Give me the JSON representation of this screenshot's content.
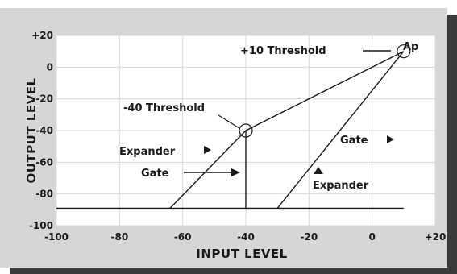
{
  "chart_data": {
    "type": "line",
    "title": "",
    "xlabel": "INPUT LEVEL",
    "ylabel": "OUTPUT LEVEL",
    "xlim": [
      -100,
      20
    ],
    "ylim": [
      -100,
      20
    ],
    "x_ticks": [
      -100,
      -80,
      -60,
      -40,
      -20,
      0,
      20
    ],
    "x_tick_labels": [
      "-100",
      "-80",
      "-60",
      "-40",
      "-20",
      "0",
      "+20"
    ],
    "y_ticks": [
      20,
      0,
      -20,
      -40,
      -60,
      -80,
      -100
    ],
    "y_tick_labels": [
      "+20",
      "0",
      "-20",
      "-40",
      "-60",
      "-80",
      "-100"
    ],
    "grid": true,
    "series": [
      {
        "values": [
          [
            -100,
            -89
          ],
          [
            10,
            -89
          ]
        ]
      },
      {
        "values": [
          [
            -64,
            -89
          ],
          [
            -40,
            -40
          ],
          [
            10,
            10
          ]
        ]
      },
      {
        "values": [
          [
            -30,
            -89
          ],
          [
            10,
            10
          ]
        ]
      },
      {
        "values": [
          [
            -40,
            -89
          ],
          [
            -40,
            -40
          ]
        ]
      }
    ],
    "markers": [
      {
        "x": -40,
        "y": -40
      },
      {
        "x": 10,
        "y": 10
      }
    ],
    "annotations": {
      "threshold_plus10": "+10 Threshold",
      "ap": "Ap",
      "threshold_minus40": "-40 Threshold",
      "expander_left": "Expander",
      "gate_left": "Gate",
      "gate_right": "Gate",
      "expander_right": "Expander"
    }
  },
  "colors": {
    "frame_bg": "#d6d6d6",
    "shadow": "#3a3a3a",
    "plot_bg": "#ffffff",
    "grid": "#d9d9d9",
    "line": "#1a1a1a"
  }
}
